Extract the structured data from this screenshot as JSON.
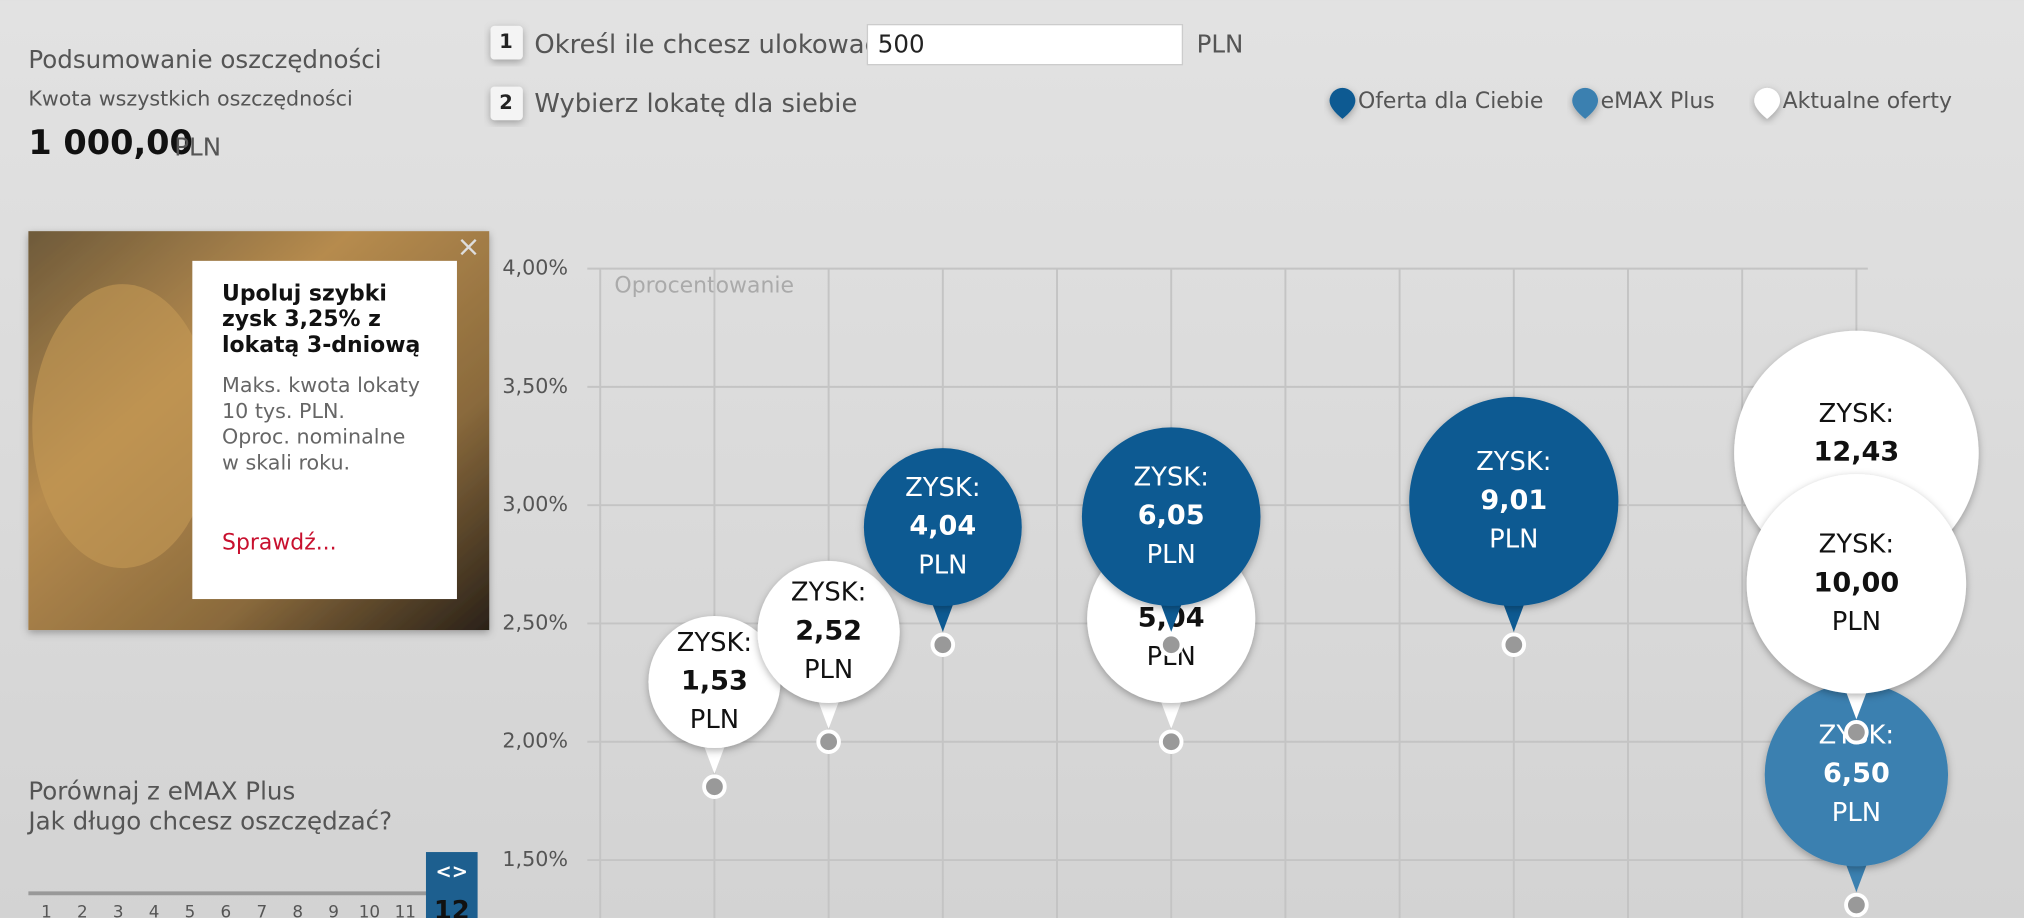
{
  "header": {
    "title": "Podsumowanie oszczędności",
    "subtitle": "Kwota wszystkich oszczędności",
    "amount": "1 000,00",
    "currency": "PLN"
  },
  "steps": [
    {
      "number": "1",
      "label": "Określ ile chcesz ulokować",
      "input": "500",
      "unit": "PLN"
    },
    {
      "number": "2",
      "label": "Wybierz lokatę dla siebie"
    }
  ],
  "promo": {
    "close": "×",
    "title": [
      "Upoluj szybki",
      "zysk 3,25% z",
      "lokatą 3-dniową"
    ],
    "body": [
      "Maks. kwota lokaty",
      "10 tys. PLN.",
      "Oproc. nominalne",
      "w skali roku."
    ],
    "link": "Sprawdź..."
  },
  "compare": {
    "title": "Porównaj z eMAX Plus",
    "question": "Jak długo chcesz oszczędzać?",
    "scale": [
      "1",
      "2",
      "3",
      "4",
      "5",
      "6",
      "7",
      "8",
      "9",
      "10",
      "11"
    ],
    "selected": "12",
    "handle": "<>"
  },
  "chart_data": {
    "type": "bubble",
    "axis_label": "Oprocentowanie",
    "bubble_label": "ZYSK:",
    "unit": "PLN",
    "ylim": [
      1.25,
      4.0
    ],
    "yticks": [
      {
        "value": 4.0,
        "label": "4,00%"
      },
      {
        "value": 3.5,
        "label": "3,50%"
      },
      {
        "value": 3.0,
        "label": "3,00%"
      },
      {
        "value": 2.5,
        "label": "2,50%"
      },
      {
        "value": 2.0,
        "label": "2,00%"
      },
      {
        "value": 1.5,
        "label": "1,50%"
      }
    ],
    "xlim": [
      0,
      11.1
    ],
    "xticks": [
      0,
      1,
      2,
      3,
      4,
      5,
      6,
      7,
      8,
      9,
      10,
      11
    ],
    "grid": true,
    "series": [
      {
        "name": "Oferta dla Ciebie",
        "color": "#0d5a92",
        "x": [
          3,
          5,
          8
        ],
        "values": [
          2.41,
          2.41,
          2.41
        ],
        "profits": [
          "4,04",
          "6,05",
          "9,01"
        ]
      },
      {
        "name": "eMAX Plus",
        "color": "#3a80b0",
        "x": [
          11
        ],
        "values": [
          1.31
        ],
        "profits": [
          "6,50"
        ]
      },
      {
        "name": "Aktualne oferty",
        "color": "#ffffff",
        "x": [
          1,
          2,
          5,
          11,
          11
        ],
        "values": [
          1.81,
          2.0,
          2.0,
          2.54,
          2.04
        ],
        "profits": [
          "1,53",
          "2,52",
          "5,04",
          "12,43",
          "10,00"
        ]
      }
    ]
  }
}
